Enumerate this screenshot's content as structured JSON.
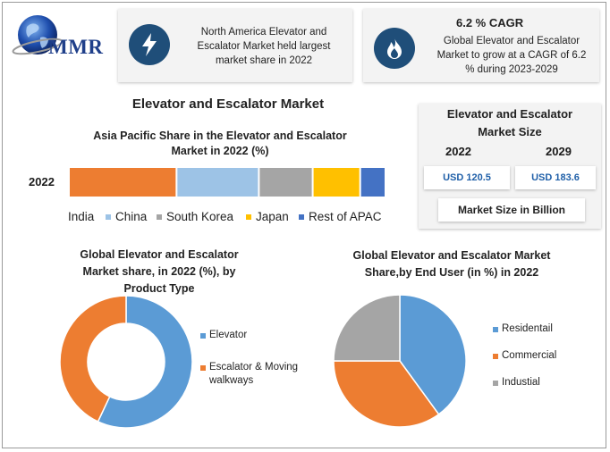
{
  "logo": {
    "text": "MMR"
  },
  "card_market_share": {
    "text": "North America Elevator and Escalator Market held largest market share in 2022",
    "icon": "lightning-icon"
  },
  "card_cagr": {
    "title": "6.2 % CAGR",
    "text": "Global Elevator and Escalator Market to grow at a CAGR of 6.2 % during 2023-2029",
    "icon": "flame-icon"
  },
  "main_title": "Elevator and Escalator Market",
  "market_size": {
    "title": "Elevator and Escalator Market Size",
    "year_a": "2022",
    "year_b": "2029",
    "value_a": "USD 120.5",
    "value_b": "USD 183.6",
    "footer": "Market Size in Billion"
  },
  "chart_data": [
    {
      "type": "bar",
      "orientation": "horizontal-stacked",
      "title": "Asia Pacific Share in the Elevator and Escalator Market in 2022 (%)",
      "categories": [
        "2022"
      ],
      "series": [
        {
          "name": "India",
          "values": [
            34
          ],
          "color": "#ed7d31"
        },
        {
          "name": "China",
          "values": [
            26
          ],
          "color": "#9dc3e6"
        },
        {
          "name": "South Korea",
          "values": [
            17
          ],
          "color": "#a5a5a5"
        },
        {
          "name": "Japan",
          "values": [
            15
          ],
          "color": "#ffc000"
        },
        {
          "name": "Rest of APAC",
          "values": [
            8
          ],
          "color": "#4472c4"
        }
      ]
    },
    {
      "type": "pie",
      "variant": "donut",
      "title": "Global Elevator and Escalator Market share, in 2022 (%), by Product Type",
      "labels": [
        "Elevator",
        "Escalator & Moving walkways"
      ],
      "values": [
        57,
        43
      ],
      "colors": [
        "#5b9bd5",
        "#ed7d31"
      ]
    },
    {
      "type": "pie",
      "title": "Global Elevator and Escalator Market Share,by End User (in %) in 2022",
      "labels": [
        "Residentail",
        "Commercial",
        "Industial"
      ],
      "values": [
        40,
        35,
        25
      ],
      "colors": [
        "#5b9bd5",
        "#ed7d31",
        "#a5a5a5"
      ]
    }
  ]
}
